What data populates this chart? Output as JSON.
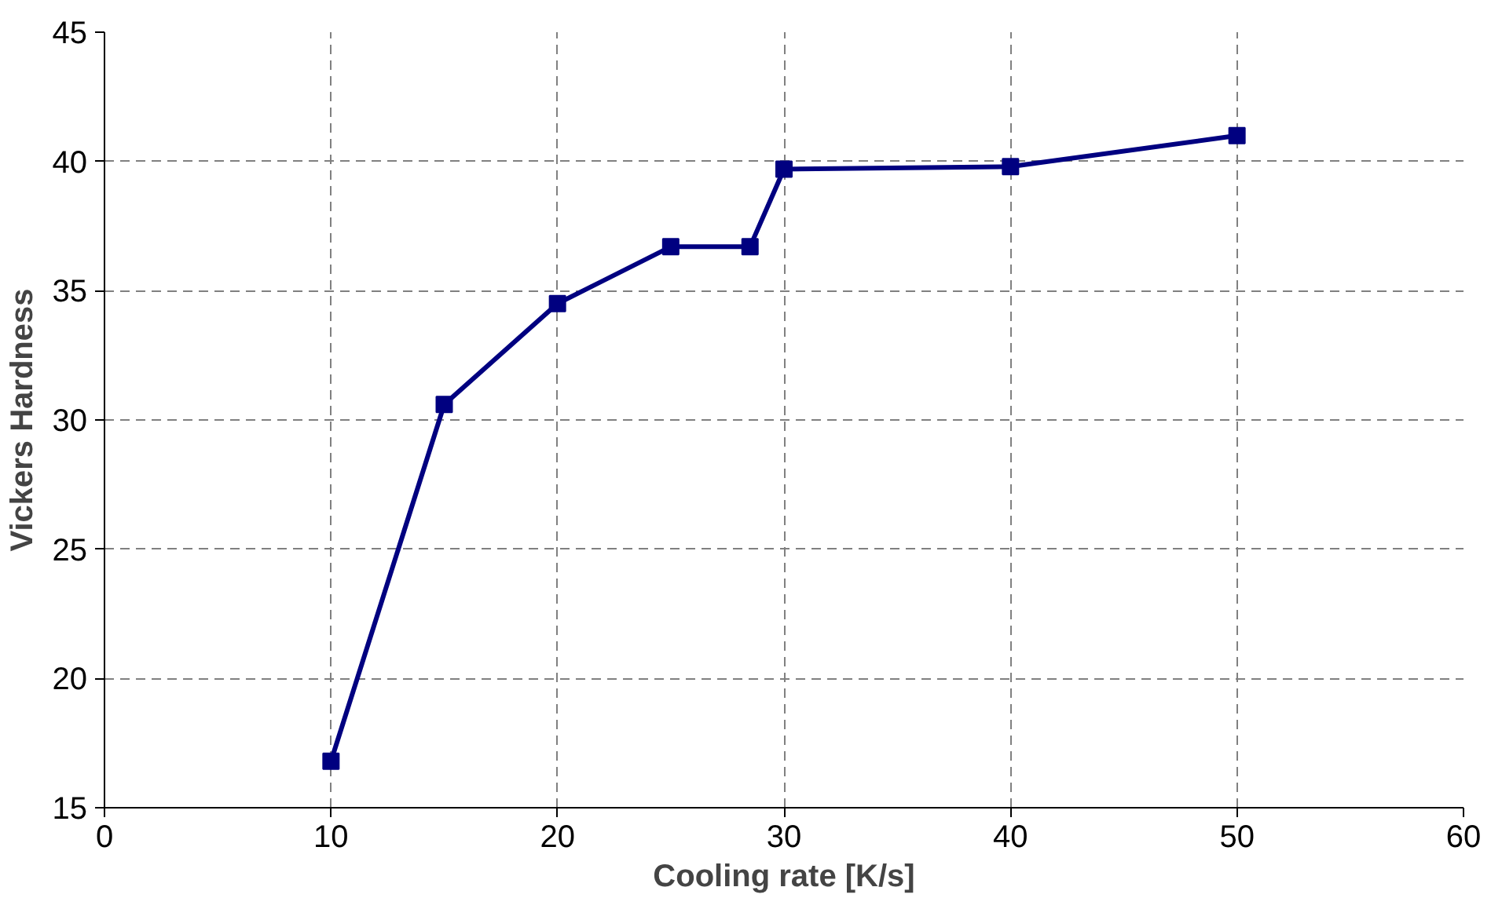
{
  "chart_data": {
    "type": "line",
    "xlabel": "Cooling rate [K/s]",
    "ylabel": "Vickers Hardness",
    "x": [
      10,
      15,
      20,
      25,
      28.5,
      30,
      40,
      50
    ],
    "series": [
      {
        "color": "#000080",
        "values": [
          16.8,
          30.6,
          34.5,
          36.7,
          36.7,
          39.7,
          39.8,
          41.0
        ]
      }
    ],
    "xlim": [
      0,
      60
    ],
    "xticks": [
      0,
      10,
      20,
      30,
      40,
      50,
      60
    ],
    "ylim": [
      15,
      45
    ],
    "yticks": [
      15,
      20,
      25,
      30,
      35,
      40,
      45
    ],
    "grid": true,
    "marker": "square",
    "line_style": "solid"
  }
}
